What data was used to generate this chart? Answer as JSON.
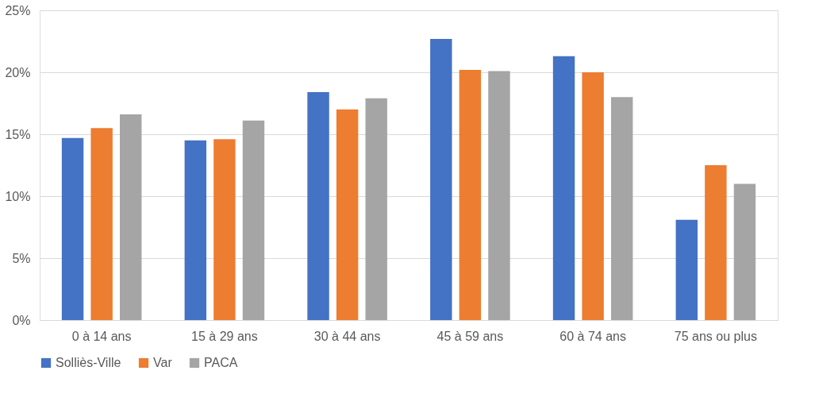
{
  "chart_data": {
    "type": "bar",
    "categories": [
      "0 à 14 ans",
      "15 à 29 ans",
      "30 à 44 ans",
      "45 à 59 ans",
      "60 à 74 ans",
      "75 ans ou plus"
    ],
    "series": [
      {
        "name": "Solliès-Ville",
        "color": "#4472c4",
        "values": [
          14.7,
          14.5,
          18.4,
          22.7,
          21.3,
          8.1
        ]
      },
      {
        "name": "Var",
        "color": "#ed7d31",
        "values": [
          15.5,
          14.6,
          17.0,
          20.2,
          20.0,
          12.5
        ]
      },
      {
        "name": "PACA",
        "color": "#a5a5a5",
        "values": [
          16.6,
          16.1,
          17.9,
          20.1,
          18.0,
          11.0
        ]
      }
    ],
    "ylim": [
      0,
      25
    ],
    "yticks": [
      {
        "value": 0,
        "label": "0%"
      },
      {
        "value": 5,
        "label": "5%"
      },
      {
        "value": 10,
        "label": "10%"
      },
      {
        "value": 15,
        "label": "15%"
      },
      {
        "value": 20,
        "label": "20%"
      },
      {
        "value": 25,
        "label": "25%"
      }
    ],
    "grid": "y",
    "legend": "bottom"
  }
}
